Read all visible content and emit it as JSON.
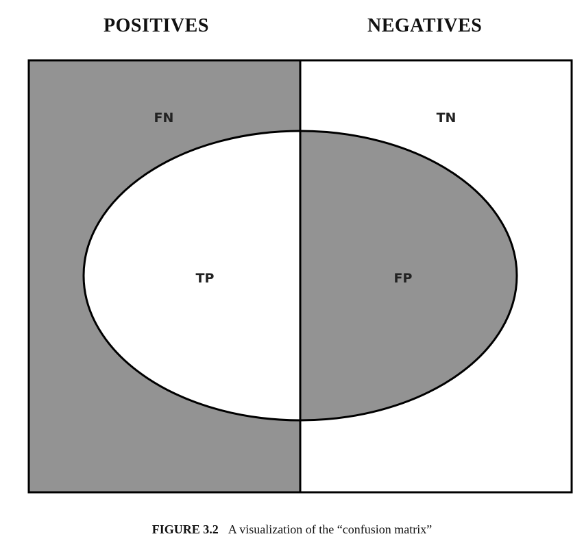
{
  "headings": {
    "positives": "POSITIVES",
    "negatives": "NEGATIVES"
  },
  "regions": {
    "false_negative": "FN",
    "true_negative": "TN",
    "true_positive": "TP",
    "false_positive": "FP"
  },
  "caption": {
    "label": "FIGURE 3.2",
    "text": "A visualization of the “confusion matrix”"
  },
  "colors": {
    "shaded": "#939393",
    "unshaded": "#ffffff",
    "stroke": "#000000"
  }
}
